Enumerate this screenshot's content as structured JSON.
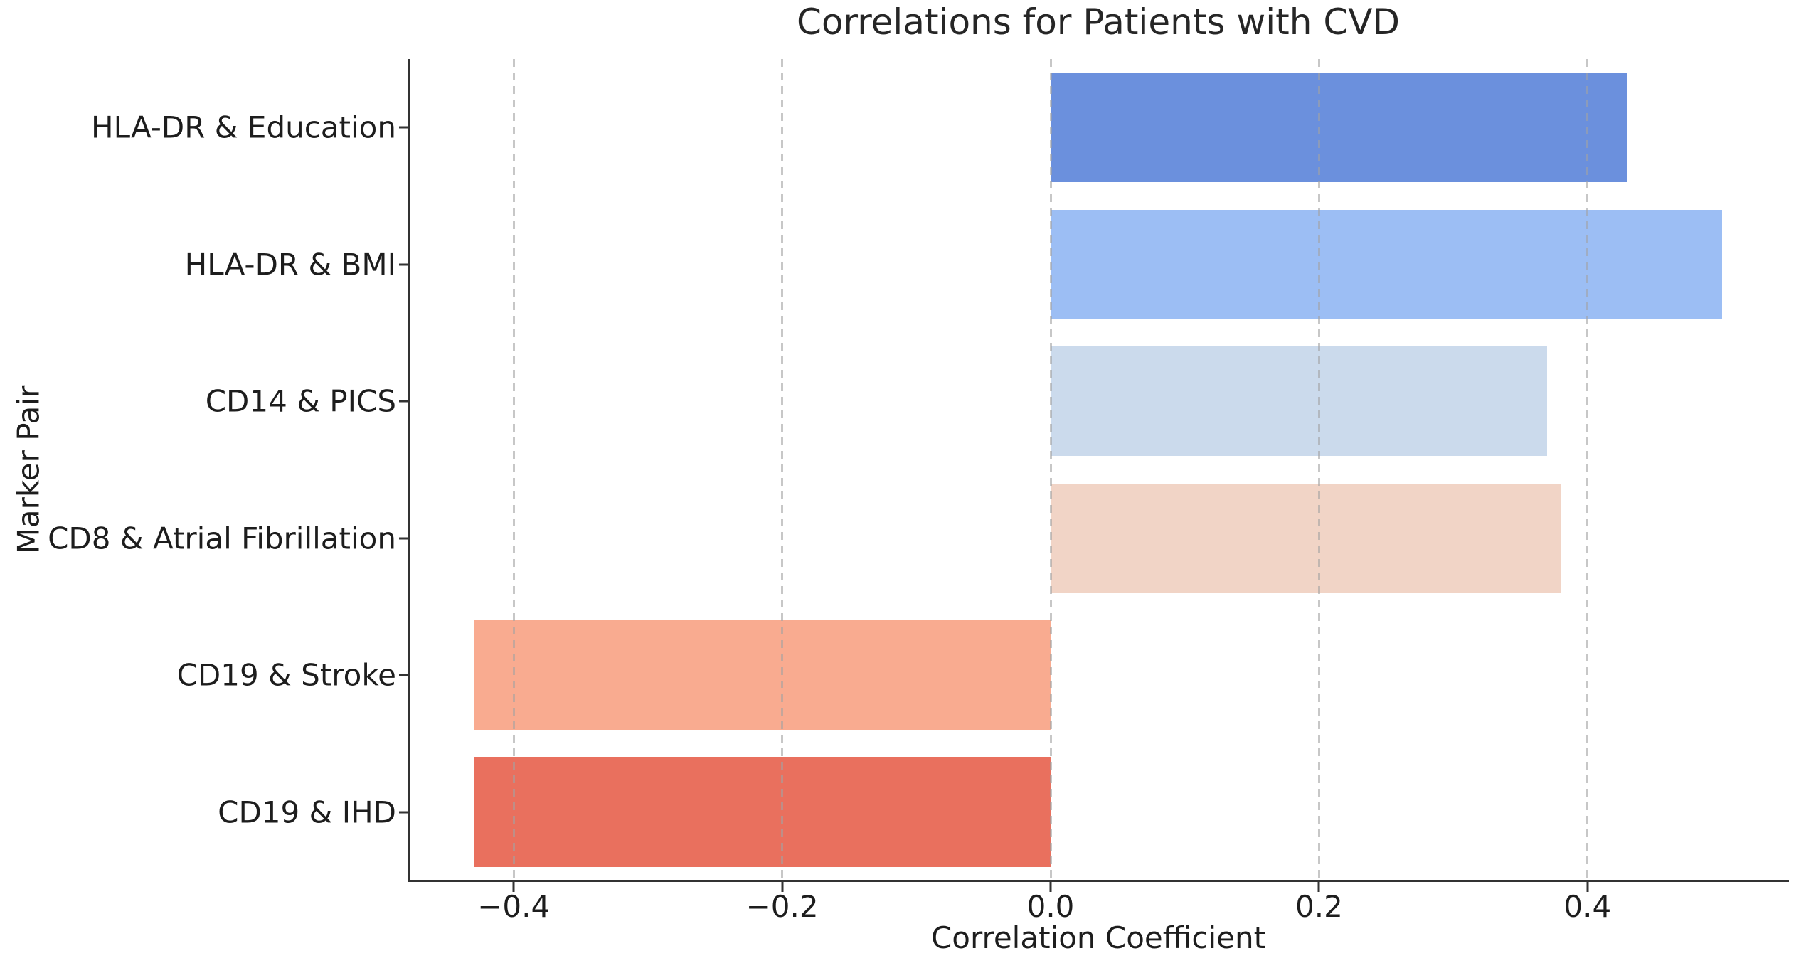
{
  "chart_data": {
    "type": "bar",
    "orientation": "horizontal",
    "title": "Correlations for Patients with CVD",
    "xlabel": "Correlation Coefficient",
    "ylabel": "Marker Pair",
    "categories": [
      "HLA-DR & Education",
      "HLA-DR & BMI",
      "CD14 & PICS",
      "CD8 & Atrial Fibrillation",
      "CD19 & Stroke",
      "CD19 & IHD"
    ],
    "values": [
      0.43,
      0.5,
      0.37,
      0.38,
      -0.43,
      -0.43
    ],
    "bar_colors": [
      "#6b90dd",
      "#9cbef4",
      "#cbdaec",
      "#f1d4c6",
      "#f9ab90",
      "#e9705e"
    ],
    "xlim": [
      -0.478,
      0.549
    ],
    "xticks": [
      -0.4,
      -0.2,
      0.0,
      0.2,
      0.4
    ],
    "xtick_labels": [
      "−0.4",
      "−0.2",
      "0.0",
      "0.2",
      "0.4"
    ],
    "grid": "vertical-dashed-above-bars",
    "legend": "none",
    "background_color": "#ffffff",
    "axis_color": "#333333",
    "text_color": "#1d1d1d",
    "gridline_color": "#c9c9c9"
  }
}
